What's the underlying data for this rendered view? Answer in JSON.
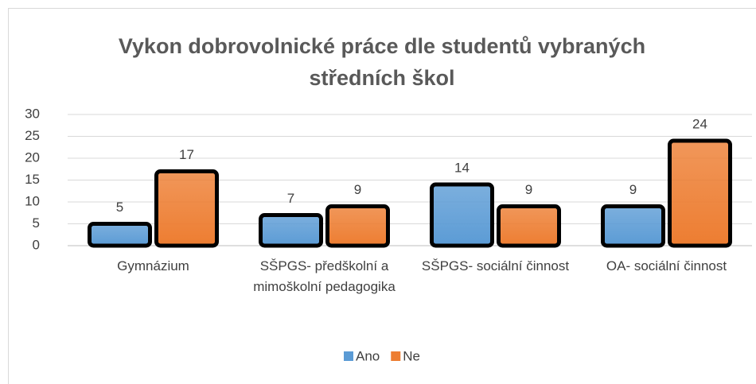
{
  "chart_data": {
    "type": "bar",
    "title": "Vykon dobrovolnické práce dle studentů vybraných středních škol",
    "categories": [
      "Gymnázium",
      "SŠPGS- předškolní a mimoškolní pedagogika",
      "SŠPGS- sociální činnost",
      "OA- sociální činnost"
    ],
    "series": [
      {
        "name": "Ano",
        "color": "#5b9bd5",
        "values": [
          5,
          7,
          14,
          9
        ]
      },
      {
        "name": "Ne",
        "color": "#ed7d31",
        "values": [
          17,
          9,
          9,
          24
        ]
      }
    ],
    "ylim": [
      0,
      30
    ],
    "yticks": [
      0,
      5,
      10,
      15,
      20,
      25,
      30
    ],
    "grid": true,
    "legend": "bottom"
  }
}
